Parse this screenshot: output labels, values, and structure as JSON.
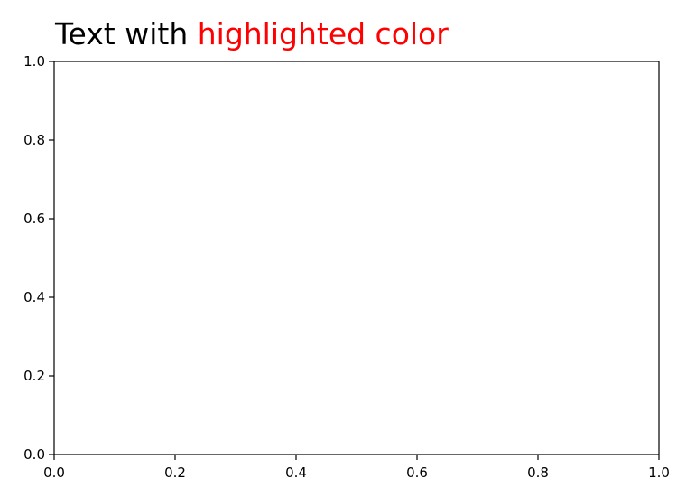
{
  "chart_data": {
    "type": "line",
    "title": "Text with highlighted color",
    "title_parts": [
      {
        "text": "Text with ",
        "color": "#000000"
      },
      {
        "text": "highlighted color",
        "color": "#ff0000"
      }
    ],
    "xlabel": "",
    "ylabel": "",
    "xlim": [
      0.0,
      1.0
    ],
    "ylim": [
      0.0,
      1.0
    ],
    "xticks": [
      0.0,
      0.2,
      0.4,
      0.6,
      0.8,
      1.0
    ],
    "yticks": [
      0.0,
      0.2,
      0.4,
      0.6,
      0.8,
      1.0
    ],
    "xtick_labels": [
      "0.0",
      "0.2",
      "0.4",
      "0.6",
      "0.8",
      "1.0"
    ],
    "ytick_labels": [
      "0.0",
      "0.2",
      "0.4",
      "0.6",
      "0.8",
      "1.0"
    ],
    "grid": false,
    "series": []
  }
}
